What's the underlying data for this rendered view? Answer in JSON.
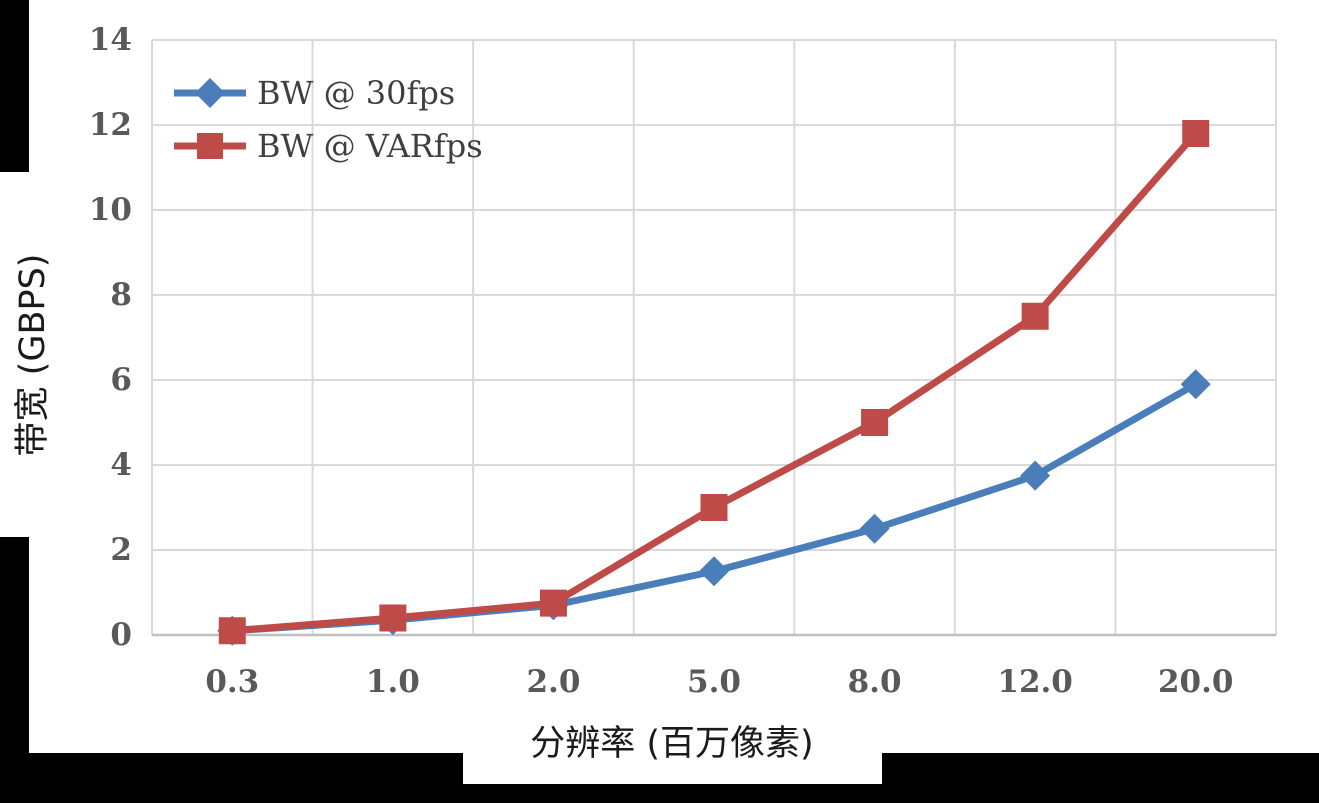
{
  "chart_data": {
    "type": "line",
    "title": "",
    "xlabel": "分辨率 (百万像素)",
    "ylabel": "带宽 (GBPS)",
    "categories": [
      "0.3",
      "1.0",
      "2.0",
      "5.0",
      "8.0",
      "12.0",
      "20.0"
    ],
    "series": [
      {
        "name": "BW @ 30fps",
        "color": "#4A7EBB",
        "marker": "diamond",
        "values": [
          0.1,
          0.35,
          0.7,
          1.5,
          2.5,
          3.75,
          5.9
        ]
      },
      {
        "name": "BW @ VARfps",
        "color": "#BE4B48",
        "marker": "square",
        "values": [
          0.1,
          0.4,
          0.75,
          3.0,
          5.0,
          7.5,
          11.8
        ]
      }
    ],
    "ylim": [
      0,
      14
    ],
    "y_ticks": [
      0,
      2,
      4,
      6,
      8,
      10,
      12,
      14
    ],
    "grid": true,
    "legend_position": "top-left-inside"
  },
  "colors": {
    "page_bg": "#000000",
    "card_bg": "#FFFFFF",
    "gridline": "#D9D9D9",
    "axis_line": "#BFBFBF",
    "tick_text": "#595959",
    "legend_text": "#3F3F3F",
    "title_text": "#1A1A1A"
  }
}
